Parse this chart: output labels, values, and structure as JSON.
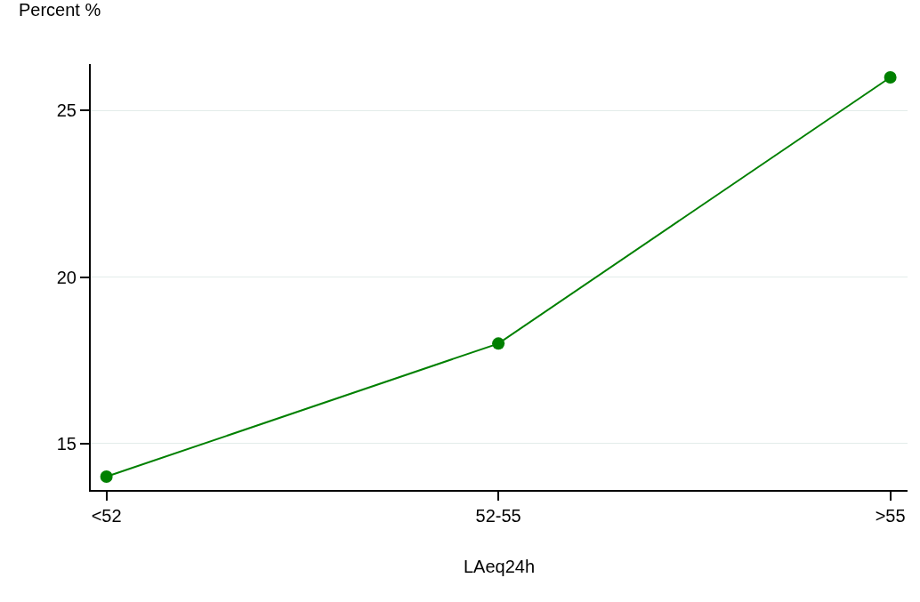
{
  "chart_data": {
    "type": "line",
    "ylabel": "Percent %",
    "xlabel": "LAeq24h",
    "categories": [
      "<52",
      "52-55",
      ">55"
    ],
    "series": [
      {
        "color": "#008000",
        "values": [
          14,
          18,
          26
        ]
      }
    ],
    "ylim": [
      13.6,
      26.4
    ],
    "yticks": [
      15,
      20,
      25
    ],
    "grid": "y",
    "marker": "circle",
    "line_style": "solid"
  }
}
